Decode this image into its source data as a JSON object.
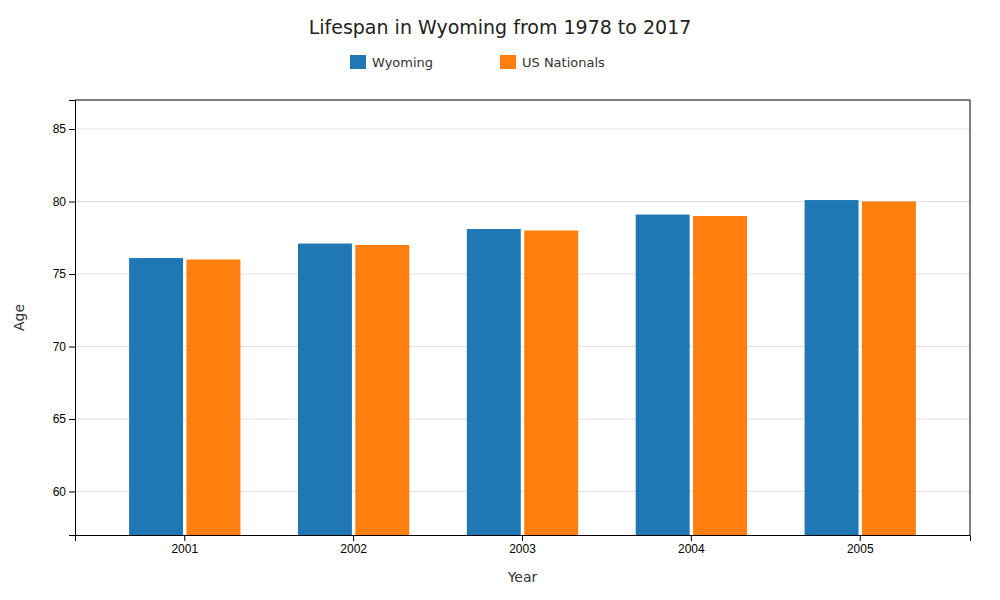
{
  "chart_data": {
    "type": "bar",
    "title": "Lifespan in Wyoming from 1978 to 2017",
    "xlabel": "Year",
    "ylabel": "Age",
    "categories": [
      "2001",
      "2002",
      "2003",
      "2004",
      "2005"
    ],
    "series": [
      {
        "name": "Wyoming",
        "values": [
          76.1,
          77.1,
          78.1,
          79.1,
          80.1
        ]
      },
      {
        "name": "US Nationals",
        "values": [
          76.0,
          77.0,
          78.0,
          79.0,
          80.0
        ]
      }
    ],
    "ylim": [
      57,
      87
    ],
    "yticks": [
      60,
      65,
      70,
      75,
      80,
      85
    ],
    "grid": true
  }
}
